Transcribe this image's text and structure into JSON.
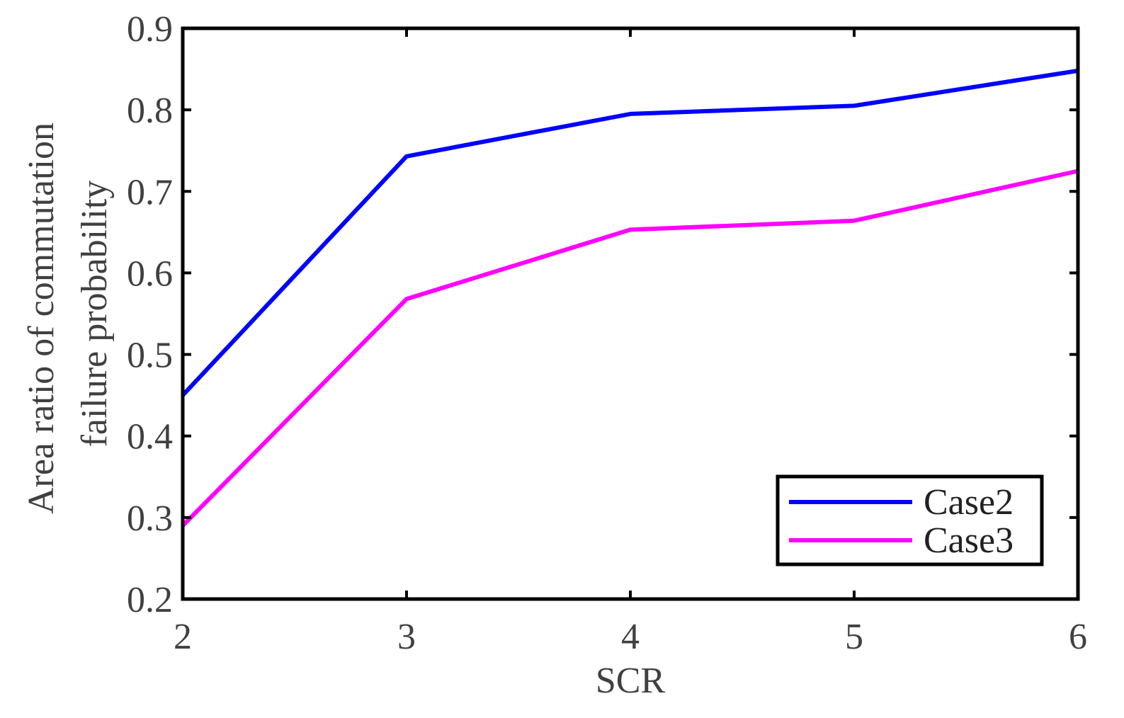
{
  "chart_data": {
    "type": "line",
    "xlabel": "SCR",
    "ylabel_lines": [
      "Area ratio of commutation",
      "failure probability"
    ],
    "xlim": [
      2,
      6
    ],
    "ylim": [
      0.2,
      0.9
    ],
    "x_ticks": [
      "2",
      "3",
      "4",
      "5",
      "6"
    ],
    "y_ticks": [
      "0.2",
      "0.3",
      "0.4",
      "0.5",
      "0.6",
      "0.7",
      "0.8",
      "0.9"
    ],
    "x": [
      2,
      3,
      4,
      5,
      6
    ],
    "series": [
      {
        "name": "Case2",
        "color": "#0000ff",
        "values": [
          0.45,
          0.743,
          0.795,
          0.805,
          0.848
        ]
      },
      {
        "name": "Case3",
        "color": "#ff00ff",
        "values": [
          0.29,
          0.568,
          0.653,
          0.664,
          0.725
        ]
      }
    ],
    "grid": false,
    "legend_position": "bottom-right"
  }
}
